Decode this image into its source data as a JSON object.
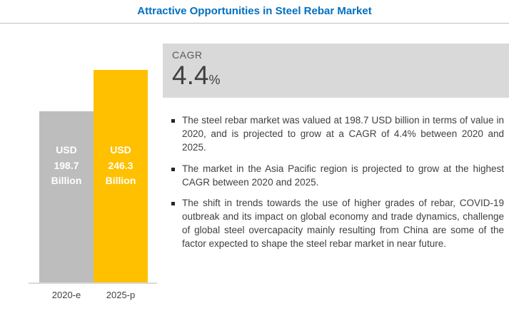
{
  "title": "Attractive Opportunities in Steel Rebar Market",
  "colors": {
    "title_blue": "#0070C0",
    "bar_gray": "#BDBDBD",
    "bar_yellow": "#FFC000",
    "cagr_box_gray": "#D9D9D9",
    "text_dark": "#404040"
  },
  "chart_data": {
    "type": "bar",
    "title": "Attractive Opportunities in Steel Rebar Market",
    "categories": [
      "2020-e",
      "2025-p"
    ],
    "values": [
      198.7,
      246.3
    ],
    "unit": "USD Billion",
    "bar_labels": [
      "USD\n198.7\nBillion",
      "USD\n246.3\nBillion"
    ],
    "colors": [
      "#BDBDBD",
      "#FFC000"
    ],
    "xlabel": "",
    "ylabel": "",
    "ylim": [
      0,
      246.3
    ],
    "grid": false,
    "legend": false
  },
  "cagr": {
    "label": "CAGR",
    "value": "4.4",
    "percent_sign": "%"
  },
  "bullets": [
    "The steel rebar market was valued at 198.7 USD billion in terms of value in 2020, and is projected to grow at a CAGR of 4.4% between 2020 and 2025.",
    "The market in the Asia Pacific region is projected to grow at the highest CAGR between 2020 and 2025.",
    "The shift in trends towards the use of higher grades of rebar, COVID-19 outbreak and its impact on global economy and trade dynamics, challenge of global steel overcapacity mainly resulting from China are some of the factor expected to shape the steel rebar market in near future."
  ]
}
